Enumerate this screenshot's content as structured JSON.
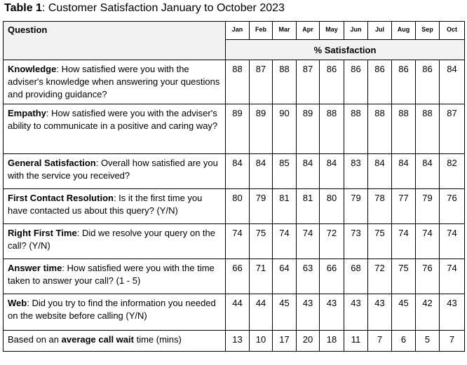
{
  "caption": {
    "label": "Table 1",
    "text": ": Customer Satisfaction January to October 2023"
  },
  "table": {
    "question_header": "Question",
    "months": [
      "Jan",
      "Feb",
      "Mar",
      "Apr",
      "May",
      "Jun",
      "Jul",
      "Aug",
      "Sep",
      "Oct"
    ],
    "unit_header": "% Satisfaction",
    "rows": [
      {
        "bold": "Knowledge",
        "text": ": How satisfied were you with the adviser's knowledge when answering your questions and providing guidance?",
        "values": [
          "88",
          "87",
          "88",
          "87",
          "86",
          "86",
          "86",
          "86",
          "86",
          "84"
        ]
      },
      {
        "bold": "Empathy",
        "text": ": How satisfied were you with the adviser's ability to communicate in a positive and caring way?",
        "values": [
          "89",
          "89",
          "90",
          "89",
          "88",
          "88",
          "88",
          "88",
          "88",
          "87"
        ]
      },
      {
        "bold": "General Satisfaction",
        "text": ": Overall how satisfied are you with the service you received?",
        "values": [
          "84",
          "84",
          "85",
          "84",
          "84",
          "83",
          "84",
          "84",
          "84",
          "82"
        ]
      },
      {
        "bold": "First Contact Resolution",
        "text": ": Is it the first time you have contacted us about this query? (Y/N)",
        "values": [
          "80",
          "79",
          "81",
          "81",
          "80",
          "79",
          "78",
          "77",
          "79",
          "76"
        ]
      },
      {
        "bold": "Right First Time",
        "text": ": Did we resolve your query on the call? (Y/N)",
        "values": [
          "74",
          "75",
          "74",
          "74",
          "72",
          "73",
          "75",
          "74",
          "74",
          "74"
        ]
      },
      {
        "bold": "Answer time",
        "text": ": How satisfied were you with the time taken to answer your call? (1 - 5)",
        "values": [
          "66",
          "71",
          "64",
          "63",
          "66",
          "68",
          "72",
          "75",
          "76",
          "74"
        ]
      },
      {
        "bold": "Web",
        "text": ": Did you try to find the information you needed on the website before calling (Y/N)",
        "values": [
          "44",
          "44",
          "45",
          "43",
          "43",
          "43",
          "43",
          "45",
          "42",
          "43"
        ]
      }
    ],
    "last_row": {
      "pre": "Based on an ",
      "bold": "average call wait",
      "post": " time (mins)",
      "values": [
        "13",
        "10",
        "17",
        "20",
        "18",
        "11",
        "7",
        "6",
        "5",
        "7"
      ]
    }
  }
}
